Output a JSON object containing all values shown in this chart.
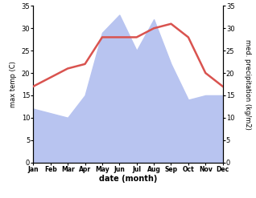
{
  "months": [
    "Jan",
    "Feb",
    "Mar",
    "Apr",
    "May",
    "Jun",
    "Jul",
    "Aug",
    "Sep",
    "Oct",
    "Nov",
    "Dec"
  ],
  "x": [
    1,
    2,
    3,
    4,
    5,
    6,
    7,
    8,
    9,
    10,
    11,
    12
  ],
  "temp": [
    17,
    19,
    21,
    22,
    28,
    28,
    28,
    30,
    31,
    28,
    20,
    17
  ],
  "precip": [
    12,
    11,
    10,
    15,
    29,
    33,
    25,
    32,
    22,
    14,
    15,
    15
  ],
  "temp_color": "#d9534f",
  "precip_color": "#b8c4f0",
  "ylim_left": [
    0,
    35
  ],
  "ylim_right": [
    0,
    35
  ],
  "yticks_left": [
    0,
    5,
    10,
    15,
    20,
    25,
    30,
    35
  ],
  "yticks_right": [
    0,
    5,
    10,
    15,
    20,
    25,
    30,
    35
  ],
  "ylabel_left": "max temp (C)",
  "ylabel_right": "med. precipitation (kg/m2)",
  "xlabel": "date (month)",
  "line_width": 1.8,
  "bg_color": "#ffffff"
}
